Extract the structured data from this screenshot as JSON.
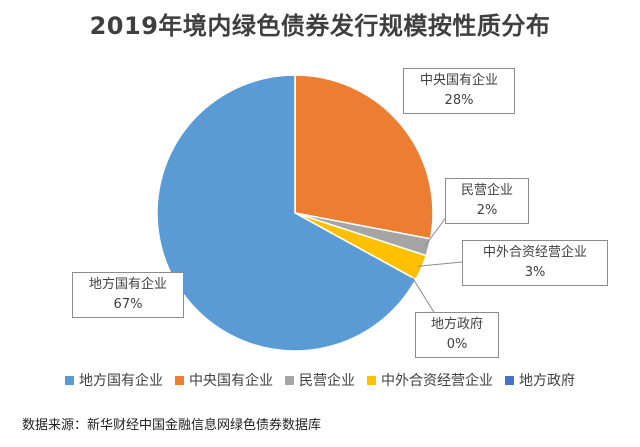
{
  "chart_data": {
    "type": "pie",
    "title": "2019年境内绿色债券发行规模按性质分布",
    "categories": [
      "地方国有企业",
      "中央国有企业",
      "民营企业",
      "中外合资经营企业",
      "地方政府"
    ],
    "values": [
      67,
      28,
      2,
      3,
      0
    ],
    "labels": [
      "67%",
      "28%",
      "2%",
      "3%",
      "0%"
    ],
    "colors": [
      "#5b9bd5",
      "#ed7d31",
      "#a5a5a5",
      "#ffc000",
      "#4472c4"
    ],
    "legend_position": "bottom"
  },
  "source_note": "数据来源：新华财经中国金融信息网绿色债券数据库"
}
